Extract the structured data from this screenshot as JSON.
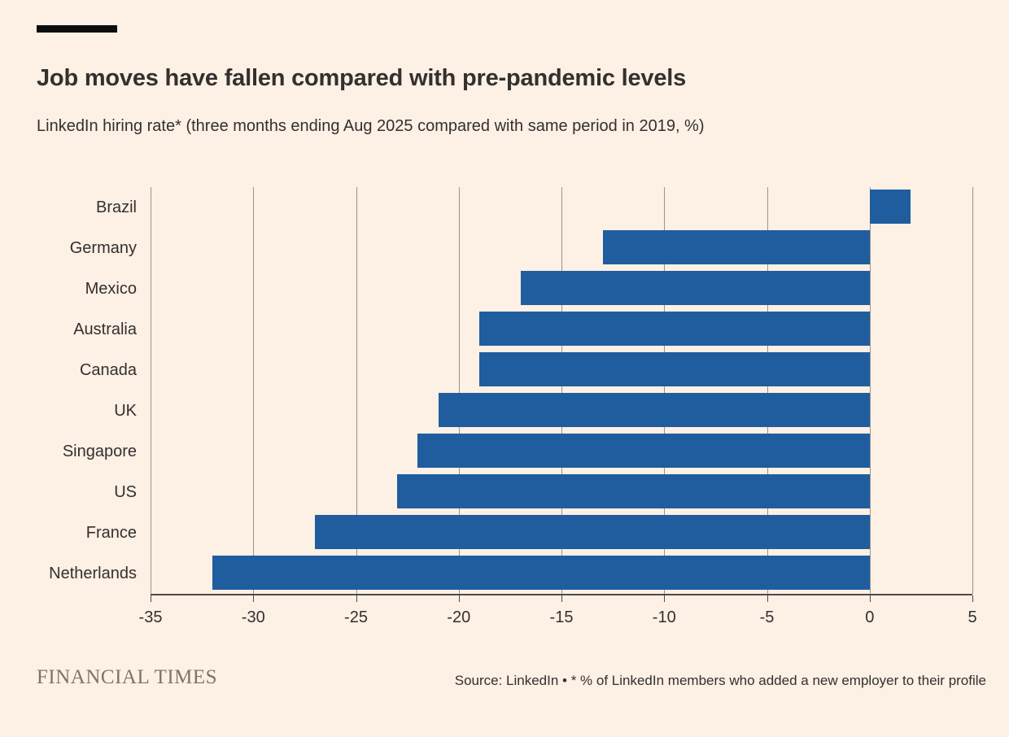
{
  "header": {
    "title": "Job moves have fallen compared with pre-pandemic levels",
    "subtitle": "LinkedIn hiring rate* (three months ending Aug 2025 compared with same period in 2019, %)"
  },
  "footer": {
    "brand": "FINANCIAL TIMES",
    "source": "Source: LinkedIn • * % of LinkedIn members who added a new employer to their profile"
  },
  "colors": {
    "background": "#fdf0e5",
    "bar": "#205d9e",
    "text": "#33302e",
    "gridline": "#9c948a",
    "axis": "#4f4a46",
    "brand": "#7d7466",
    "marker": "#0d0d0d"
  },
  "chart_data": {
    "type": "bar",
    "orientation": "horizontal",
    "title": "Job moves have fallen compared with pre-pandemic levels",
    "subtitle": "LinkedIn hiring rate* (three months ending Aug 2025 compared with same period in 2019, %)",
    "categories": [
      "Brazil",
      "Germany",
      "Mexico",
      "Australia",
      "Canada",
      "UK",
      "Singapore",
      "US",
      "France",
      "Netherlands"
    ],
    "values": [
      2,
      -13,
      -17,
      -19,
      -19,
      -21,
      -22,
      -23,
      -27,
      -32
    ],
    "xlabel": "",
    "ylabel": "",
    "xlim": [
      -35,
      5
    ],
    "xticks": [
      -35,
      -30,
      -25,
      -20,
      -15,
      -10,
      -5,
      0,
      5
    ],
    "grid": true,
    "legend": false,
    "source": "Source: LinkedIn • * % of LinkedIn members who added a new employer to their profile"
  }
}
